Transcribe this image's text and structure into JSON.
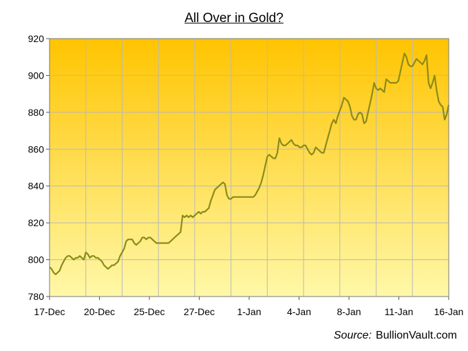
{
  "chart_data": {
    "type": "line",
    "title": "All Over in Gold?",
    "source_label": "Source:",
    "source_name": "BullionVault.com",
    "ylim": [
      780,
      920
    ],
    "yticks": [
      780,
      800,
      820,
      840,
      860,
      880,
      900,
      920
    ],
    "xticks": [
      "17-Dec",
      "20-Dec",
      "25-Dec",
      "27-Dec",
      "1-Jan",
      "4-Jan",
      "8-Jan",
      "11-Jan",
      "16-Jan"
    ],
    "grid": true,
    "colors": {
      "line": "#8a8a1a",
      "bg_top": "#ffc400",
      "bg_bottom": "#fff8a8",
      "grid": "#b9b9b9"
    },
    "series": [
      {
        "values": [
          796,
          795,
          793,
          792,
          793,
          794,
          797,
          799,
          801,
          802,
          802,
          801,
          800,
          801,
          801,
          802,
          801,
          800,
          804,
          803,
          801,
          802,
          802,
          801,
          801,
          800,
          799,
          797,
          796,
          795,
          796,
          797,
          797,
          798,
          799,
          802,
          804,
          806,
          810,
          811,
          811,
          811,
          809,
          808,
          809,
          810,
          812,
          812,
          811,
          812,
          812,
          811,
          810,
          809,
          809,
          809,
          809,
          809,
          809,
          809,
          810,
          811,
          812,
          813,
          814,
          815,
          824,
          823,
          824,
          823,
          824,
          823,
          824,
          825,
          826,
          825,
          826,
          826,
          827,
          828,
          832,
          835,
          838,
          839,
          840,
          841,
          842,
          841,
          835,
          833,
          833,
          834,
          834,
          834,
          834,
          834,
          834,
          834,
          834,
          834,
          834,
          834,
          835,
          837,
          839,
          842,
          846,
          851,
          856,
          857,
          856,
          855,
          855,
          858,
          866,
          863,
          862,
          862,
          863,
          864,
          865,
          863,
          862,
          862,
          861,
          861,
          862,
          862,
          860,
          858,
          857,
          858,
          861,
          860,
          859,
          858,
          858,
          862,
          866,
          870,
          874,
          876,
          874,
          878,
          881,
          884,
          888,
          887,
          886,
          883,
          878,
          876,
          876,
          879,
          880,
          879,
          874,
          875,
          880,
          885,
          890,
          896,
          893,
          892,
          893,
          892,
          891,
          898,
          897,
          896,
          896,
          896,
          896,
          897,
          902,
          907,
          912,
          910,
          906,
          905,
          905,
          907,
          909,
          908,
          907,
          906,
          908,
          911,
          896,
          893,
          896,
          900,
          892,
          886,
          884,
          883,
          876,
          879,
          884
        ]
      }
    ]
  }
}
